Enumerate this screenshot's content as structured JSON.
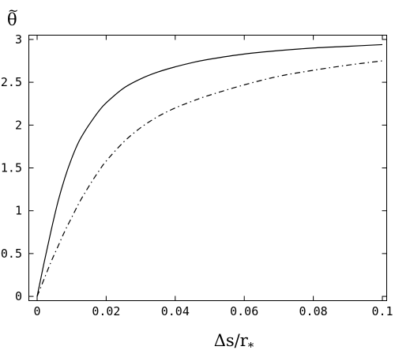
{
  "chart_data": {
    "type": "line",
    "title": "",
    "xlabel": "Δs/r",
    "xlabel_subscript": "*",
    "ylabel": "θ",
    "ylabel_accent": "~",
    "xlim": [
      0,
      0.1
    ],
    "ylim": [
      -0.05,
      3.05
    ],
    "x_ticks": [
      0,
      0.02,
      0.04,
      0.06,
      0.08,
      0.1
    ],
    "x_tick_labels": [
      "0",
      "0.02",
      "0.04",
      "0.06",
      "0.08",
      "0.1"
    ],
    "y_ticks": [
      0,
      0.5,
      1,
      1.5,
      2,
      2.5,
      3
    ],
    "y_tick_labels": [
      "0",
      "0.5",
      "1",
      "1.5",
      "2",
      "2.5",
      "3"
    ],
    "grid": false,
    "legend": "none",
    "series": [
      {
        "line_style": "solid",
        "color": "#000000",
        "x": [
          0,
          0.002,
          0.004,
          0.006,
          0.008,
          0.01,
          0.012,
          0.014,
          0.016,
          0.018,
          0.02,
          0.025,
          0.03,
          0.035,
          0.04,
          0.045,
          0.05,
          0.06,
          0.07,
          0.08,
          0.09,
          0.1
        ],
        "y": [
          0,
          0.39,
          0.76,
          1.1,
          1.38,
          1.61,
          1.8,
          1.94,
          2.06,
          2.17,
          2.26,
          2.43,
          2.54,
          2.62,
          2.68,
          2.73,
          2.77,
          2.83,
          2.87,
          2.9,
          2.92,
          2.94
        ]
      },
      {
        "line_style": "dash-dot",
        "color": "#000000",
        "x": [
          0,
          0.002,
          0.004,
          0.006,
          0.008,
          0.01,
          0.012,
          0.014,
          0.016,
          0.018,
          0.02,
          0.025,
          0.03,
          0.035,
          0.04,
          0.045,
          0.05,
          0.06,
          0.07,
          0.08,
          0.09,
          0.1
        ],
        "y": [
          0,
          0.2,
          0.4,
          0.58,
          0.76,
          0.92,
          1.08,
          1.22,
          1.35,
          1.47,
          1.58,
          1.8,
          1.97,
          2.1,
          2.2,
          2.28,
          2.35,
          2.47,
          2.57,
          2.64,
          2.7,
          2.75
        ]
      }
    ]
  }
}
